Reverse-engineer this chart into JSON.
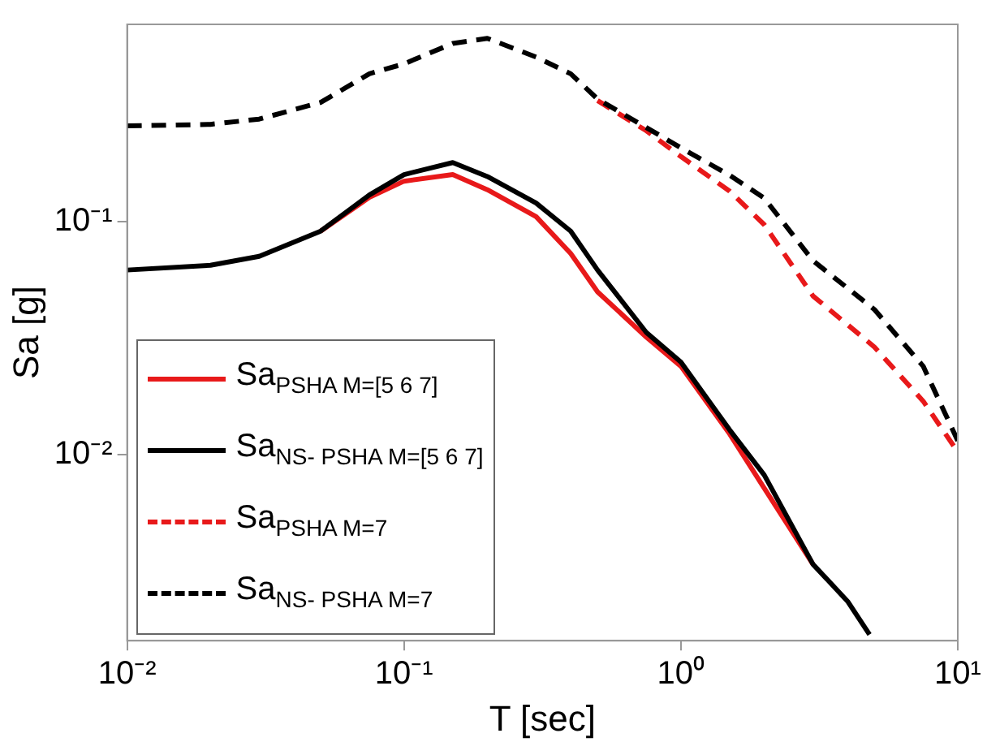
{
  "chart_data": {
    "type": "line",
    "xlabel": "T [sec]",
    "ylabel": "Sa [g]",
    "log": "xy",
    "x": [
      0.01,
      0.02,
      0.03,
      0.05,
      0.075,
      0.1,
      0.15,
      0.2,
      0.3,
      0.4,
      0.5,
      0.75,
      1,
      1.5,
      2,
      3,
      4,
      4.8
    ],
    "xlim": [
      0.01,
      10
    ],
    "xticks": [
      {
        "value": 0.01,
        "label": "10⁻²"
      },
      {
        "value": 0.1,
        "label": "10⁻¹"
      },
      {
        "value": 1,
        "label": "10⁰"
      },
      {
        "value": 10,
        "label": "10¹"
      }
    ],
    "ylim": [
      0.0016,
      0.7
    ],
    "yticks": [
      {
        "value": 0.01,
        "label": "10⁻²"
      },
      {
        "value": 0.1,
        "label": "10⁻¹"
      }
    ],
    "grid": false,
    "legend": "bottom left",
    "marker": "none",
    "series": [
      {
        "name": "Sa$_{PSHA M=[5 6 7]}$",
        "color": "#e8191a",
        "line_style": "solid",
        "x": [
          0.05,
          0.075,
          0.1,
          0.15,
          0.2,
          0.3,
          0.4,
          0.5,
          0.75,
          1,
          1.5,
          2,
          3
        ],
        "values": [
          0.091,
          0.127,
          0.149,
          0.159,
          0.137,
          0.105,
          0.073,
          0.05,
          0.032,
          0.024,
          0.0123,
          0.0072,
          0.0034
        ]
      },
      {
        "name": "Sa$_{NS- PSHA M=[5 6 7]}$",
        "color": "#000000",
        "line_style": "solid",
        "values": [
          0.062,
          0.065,
          0.071,
          0.091,
          0.13,
          0.159,
          0.179,
          0.156,
          0.12,
          0.091,
          0.062,
          0.0335,
          0.025,
          0.0128,
          0.0082,
          0.0034,
          0.00236,
          0.0017
        ]
      },
      {
        "name": "Sa$_{PSHA M=7}$",
        "color": "#e8191a",
        "line_style": "dashed",
        "x": [
          0.5,
          0.75,
          1,
          1.5,
          2,
          3,
          5,
          7.5,
          10
        ],
        "values": [
          0.33,
          0.245,
          0.19,
          0.135,
          0.097,
          0.048,
          0.029,
          0.017,
          0.0103
        ]
      },
      {
        "name": "Sa$_{NS- PSHA M=7}$",
        "color": "#000000",
        "line_style": "dashed",
        "x": [
          0.01,
          0.02,
          0.03,
          0.05,
          0.075,
          0.1,
          0.15,
          0.2,
          0.3,
          0.4,
          0.5,
          0.75,
          1,
          1.5,
          2,
          3,
          5,
          7.5,
          10
        ],
        "values": [
          0.257,
          0.261,
          0.275,
          0.324,
          0.43,
          0.474,
          0.58,
          0.61,
          0.507,
          0.43,
          0.335,
          0.253,
          0.207,
          0.158,
          0.126,
          0.068,
          0.042,
          0.024,
          0.0115
        ]
      }
    ]
  }
}
